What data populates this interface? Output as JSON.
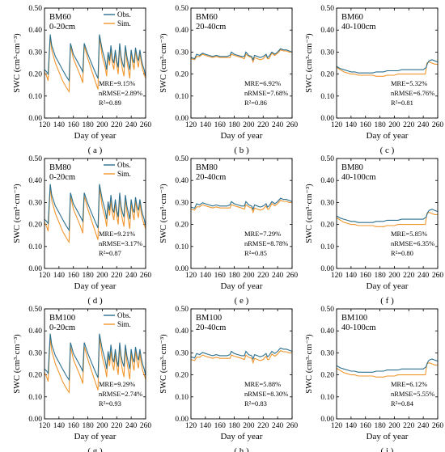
{
  "chart_data": {
    "type": "line",
    "legend": {
      "placement": "top-right",
      "entries": [
        "Obs.",
        "Sim."
      ]
    },
    "colors": {
      "obs": "#2b6f8e",
      "sim": "#f0962e"
    },
    "x_label": "Day of year",
    "y_label": "SWC (cm³·cm⁻³)",
    "xlim": [
      120,
      260
    ],
    "ylim": [
      0,
      0.5
    ],
    "x_ticks": [
      120,
      140,
      160,
      180,
      200,
      220,
      240,
      260
    ],
    "y_ticks": [
      0.0,
      0.1,
      0.2,
      0.3,
      0.4,
      0.5
    ],
    "panels": [
      {
        "id": "a",
        "letter": "( a )",
        "title": "BM60",
        "depth": "0-20cm",
        "stats": [
          "MRE=9.15%",
          "nRMSE=2.89%",
          "R²=0.89"
        ],
        "kind": "shallow",
        "variant": 0
      },
      {
        "id": "b",
        "letter": "( b )",
        "title": "BM60",
        "depth": "20-40cm",
        "stats": [
          "MRE=6.92%",
          "nRMSE=7.68%",
          "R²=0.86"
        ],
        "kind": "mid",
        "variant": 0
      },
      {
        "id": "c",
        "letter": "( c )",
        "title": "BM60",
        "depth": "40-100cm",
        "stats": [
          "MRE=5.32%",
          "nRMSE=6.76%",
          "R²=0.81"
        ],
        "kind": "deep",
        "variant": 0
      },
      {
        "id": "d",
        "letter": "( d )",
        "title": "BM80",
        "depth": "0-20cm",
        "stats": [
          "MRE=9.21%",
          "nRMSE=3.17%",
          "R²=0.87"
        ],
        "kind": "shallow",
        "variant": 1
      },
      {
        "id": "e",
        "letter": "( e )",
        "title": "BM80",
        "depth": "20-40cm",
        "stats": [
          "MRE=7.29%",
          "nRMSE=8.78%",
          "R²=0.85"
        ],
        "kind": "mid",
        "variant": 1
      },
      {
        "id": "f",
        "letter": "( f )",
        "title": "BM80",
        "depth": "40-100cm",
        "stats": [
          "MRE=5.85%",
          "nRMSE=6.35%",
          "R²=0.80"
        ],
        "kind": "deep",
        "variant": 1
      },
      {
        "id": "g",
        "letter": "( g )",
        "title": "BM100",
        "depth": "0-20cm",
        "stats": [
          "MRE=9.29%",
          "nRMSE=2.74%",
          "R²=0.93"
        ],
        "kind": "shallow",
        "variant": 2
      },
      {
        "id": "h",
        "letter": "( h )",
        "title": "BM100",
        "depth": "20-40cm",
        "stats": [
          "MRE=5.88%",
          "nRMSE=8.30%",
          "R²=0.83"
        ],
        "kind": "mid",
        "variant": 2
      },
      {
        "id": "i",
        "letter": "( i )",
        "title": "BM100",
        "depth": "40-100cm",
        "stats": [
          "MRE=6.12%",
          "nRMSE=5.55%",
          "R²=0.84"
        ],
        "kind": "deep",
        "variant": 2
      }
    ],
    "series_templates": {
      "shallow": {
        "obs": [
          [
            120,
            0.22
          ],
          [
            123,
            0.21
          ],
          [
            125,
            0.2
          ],
          [
            128,
            0.38
          ],
          [
            130,
            0.33
          ],
          [
            135,
            0.28
          ],
          [
            140,
            0.25
          ],
          [
            145,
            0.22
          ],
          [
            150,
            0.19
          ],
          [
            154,
            0.17
          ],
          [
            156,
            0.34
          ],
          [
            160,
            0.29
          ],
          [
            165,
            0.26
          ],
          [
            170,
            0.23
          ],
          [
            173,
            0.21
          ],
          [
            175,
            0.34
          ],
          [
            180,
            0.29
          ],
          [
            185,
            0.25
          ],
          [
            190,
            0.21
          ],
          [
            194,
            0.18
          ],
          [
            196,
            0.38
          ],
          [
            200,
            0.31
          ],
          [
            204,
            0.26
          ],
          [
            206,
            0.22
          ],
          [
            208,
            0.3
          ],
          [
            210,
            0.26
          ],
          [
            212,
            0.33
          ],
          [
            214,
            0.27
          ],
          [
            216,
            0.25
          ],
          [
            218,
            0.31
          ],
          [
            220,
            0.26
          ],
          [
            222,
            0.23
          ],
          [
            224,
            0.34
          ],
          [
            226,
            0.28
          ],
          [
            228,
            0.25
          ],
          [
            230,
            0.23
          ],
          [
            232,
            0.33
          ],
          [
            234,
            0.28
          ],
          [
            236,
            0.25
          ],
          [
            238,
            0.22
          ],
          [
            240,
            0.31
          ],
          [
            242,
            0.27
          ],
          [
            244,
            0.25
          ],
          [
            246,
            0.32
          ],
          [
            248,
            0.28
          ],
          [
            250,
            0.26
          ],
          [
            252,
            0.31
          ],
          [
            254,
            0.27
          ],
          [
            256,
            0.24
          ],
          [
            258,
            0.22
          ],
          [
            260,
            0.19
          ]
        ],
        "sim": [
          [
            120,
            0.21
          ],
          [
            123,
            0.19
          ],
          [
            125,
            0.17
          ],
          [
            128,
            0.37
          ],
          [
            130,
            0.31
          ],
          [
            135,
            0.25
          ],
          [
            140,
            0.21
          ],
          [
            145,
            0.17
          ],
          [
            150,
            0.14
          ],
          [
            154,
            0.12
          ],
          [
            156,
            0.33
          ],
          [
            160,
            0.27
          ],
          [
            165,
            0.23
          ],
          [
            170,
            0.19
          ],
          [
            173,
            0.16
          ],
          [
            175,
            0.33
          ],
          [
            180,
            0.27
          ],
          [
            185,
            0.22
          ],
          [
            190,
            0.17
          ],
          [
            194,
            0.13
          ],
          [
            196,
            0.37
          ],
          [
            200,
            0.28
          ],
          [
            204,
            0.23
          ],
          [
            206,
            0.19
          ],
          [
            208,
            0.29
          ],
          [
            210,
            0.24
          ],
          [
            212,
            0.31
          ],
          [
            214,
            0.25
          ],
          [
            216,
            0.22
          ],
          [
            218,
            0.3
          ],
          [
            220,
            0.24
          ],
          [
            222,
            0.2
          ],
          [
            224,
            0.33
          ],
          [
            226,
            0.26
          ],
          [
            228,
            0.22
          ],
          [
            230,
            0.19
          ],
          [
            232,
            0.32
          ],
          [
            234,
            0.26
          ],
          [
            236,
            0.22
          ],
          [
            238,
            0.18
          ],
          [
            240,
            0.3
          ],
          [
            242,
            0.25
          ],
          [
            244,
            0.22
          ],
          [
            246,
            0.31
          ],
          [
            248,
            0.26
          ],
          [
            250,
            0.23
          ],
          [
            252,
            0.3
          ],
          [
            254,
            0.25
          ],
          [
            256,
            0.22
          ],
          [
            258,
            0.2
          ],
          [
            260,
            0.18
          ]
        ]
      },
      "mid": {
        "obs": [
          [
            120,
            0.275
          ],
          [
            125,
            0.27
          ],
          [
            128,
            0.29
          ],
          [
            132,
            0.285
          ],
          [
            136,
            0.295
          ],
          [
            140,
            0.29
          ],
          [
            145,
            0.285
          ],
          [
            150,
            0.28
          ],
          [
            155,
            0.285
          ],
          [
            160,
            0.28
          ],
          [
            165,
            0.28
          ],
          [
            170,
            0.28
          ],
          [
            174,
            0.285
          ],
          [
            176,
            0.3
          ],
          [
            180,
            0.29
          ],
          [
            185,
            0.285
          ],
          [
            190,
            0.28
          ],
          [
            194,
            0.28
          ],
          [
            196,
            0.3
          ],
          [
            200,
            0.285
          ],
          [
            204,
            0.28
          ],
          [
            206,
            0.265
          ],
          [
            208,
            0.285
          ],
          [
            212,
            0.28
          ],
          [
            216,
            0.275
          ],
          [
            220,
            0.28
          ],
          [
            224,
            0.29
          ],
          [
            226,
            0.275
          ],
          [
            228,
            0.28
          ],
          [
            232,
            0.3
          ],
          [
            236,
            0.29
          ],
          [
            240,
            0.3
          ],
          [
            244,
            0.315
          ],
          [
            248,
            0.31
          ],
          [
            252,
            0.31
          ],
          [
            256,
            0.305
          ],
          [
            260,
            0.3
          ]
        ],
        "sim": [
          [
            120,
            0.27
          ],
          [
            125,
            0.265
          ],
          [
            128,
            0.28
          ],
          [
            132,
            0.28
          ],
          [
            136,
            0.29
          ],
          [
            140,
            0.285
          ],
          [
            145,
            0.28
          ],
          [
            150,
            0.275
          ],
          [
            155,
            0.28
          ],
          [
            160,
            0.275
          ],
          [
            165,
            0.275
          ],
          [
            170,
            0.275
          ],
          [
            174,
            0.275
          ],
          [
            176,
            0.29
          ],
          [
            180,
            0.285
          ],
          [
            185,
            0.28
          ],
          [
            190,
            0.275
          ],
          [
            194,
            0.27
          ],
          [
            196,
            0.29
          ],
          [
            200,
            0.28
          ],
          [
            204,
            0.275
          ],
          [
            206,
            0.255
          ],
          [
            208,
            0.275
          ],
          [
            212,
            0.27
          ],
          [
            216,
            0.265
          ],
          [
            220,
            0.27
          ],
          [
            224,
            0.285
          ],
          [
            226,
            0.27
          ],
          [
            228,
            0.27
          ],
          [
            232,
            0.295
          ],
          [
            236,
            0.285
          ],
          [
            240,
            0.295
          ],
          [
            244,
            0.31
          ],
          [
            248,
            0.305
          ],
          [
            252,
            0.305
          ],
          [
            256,
            0.3
          ],
          [
            260,
            0.3
          ]
        ]
      },
      "deep": {
        "obs": [
          [
            120,
            0.235
          ],
          [
            125,
            0.225
          ],
          [
            130,
            0.22
          ],
          [
            135,
            0.215
          ],
          [
            140,
            0.21
          ],
          [
            145,
            0.21
          ],
          [
            150,
            0.205
          ],
          [
            155,
            0.205
          ],
          [
            160,
            0.205
          ],
          [
            165,
            0.205
          ],
          [
            170,
            0.205
          ],
          [
            175,
            0.21
          ],
          [
            180,
            0.21
          ],
          [
            185,
            0.21
          ],
          [
            190,
            0.215
          ],
          [
            195,
            0.215
          ],
          [
            200,
            0.215
          ],
          [
            205,
            0.215
          ],
          [
            210,
            0.22
          ],
          [
            215,
            0.22
          ],
          [
            220,
            0.22
          ],
          [
            225,
            0.22
          ],
          [
            230,
            0.22
          ],
          [
            235,
            0.22
          ],
          [
            240,
            0.22
          ],
          [
            244,
            0.23
          ],
          [
            246,
            0.25
          ],
          [
            248,
            0.26
          ],
          [
            252,
            0.265
          ],
          [
            256,
            0.26
          ],
          [
            260,
            0.255
          ]
        ],
        "sim": [
          [
            120,
            0.23
          ],
          [
            125,
            0.22
          ],
          [
            130,
            0.21
          ],
          [
            135,
            0.205
          ],
          [
            140,
            0.2
          ],
          [
            145,
            0.2
          ],
          [
            150,
            0.195
          ],
          [
            155,
            0.195
          ],
          [
            160,
            0.195
          ],
          [
            165,
            0.195
          ],
          [
            170,
            0.195
          ],
          [
            175,
            0.19
          ],
          [
            180,
            0.19
          ],
          [
            185,
            0.19
          ],
          [
            190,
            0.195
          ],
          [
            195,
            0.195
          ],
          [
            200,
            0.195
          ],
          [
            205,
            0.2
          ],
          [
            210,
            0.2
          ],
          [
            215,
            0.2
          ],
          [
            220,
            0.2
          ],
          [
            225,
            0.2
          ],
          [
            230,
            0.2
          ],
          [
            235,
            0.2
          ],
          [
            240,
            0.2
          ],
          [
            243,
            0.2
          ],
          [
            245,
            0.25
          ],
          [
            248,
            0.255
          ],
          [
            252,
            0.25
          ],
          [
            256,
            0.245
          ],
          [
            260,
            0.245
          ]
        ]
      }
    }
  }
}
